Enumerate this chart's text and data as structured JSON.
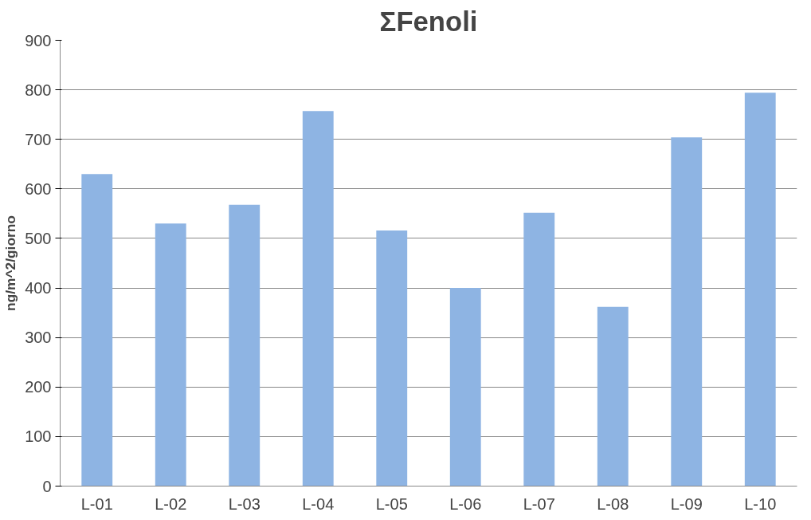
{
  "chart_data": {
    "type": "bar",
    "title": "ΣFenoli",
    "ylabel": "ng/m^2/giorno",
    "categories": [
      "L-01",
      "L-02",
      "L-03",
      "L-04",
      "L-05",
      "L-06",
      "L-07",
      "L-08",
      "L-09",
      "L-10"
    ],
    "values": [
      630,
      530,
      568,
      757,
      516,
      400,
      552,
      362,
      704,
      794
    ],
    "color": "#8eb4e3",
    "ylim": [
      0,
      900
    ],
    "yticks": [
      0,
      100,
      200,
      300,
      400,
      500,
      600,
      700,
      800,
      900
    ],
    "grid": "y"
  }
}
